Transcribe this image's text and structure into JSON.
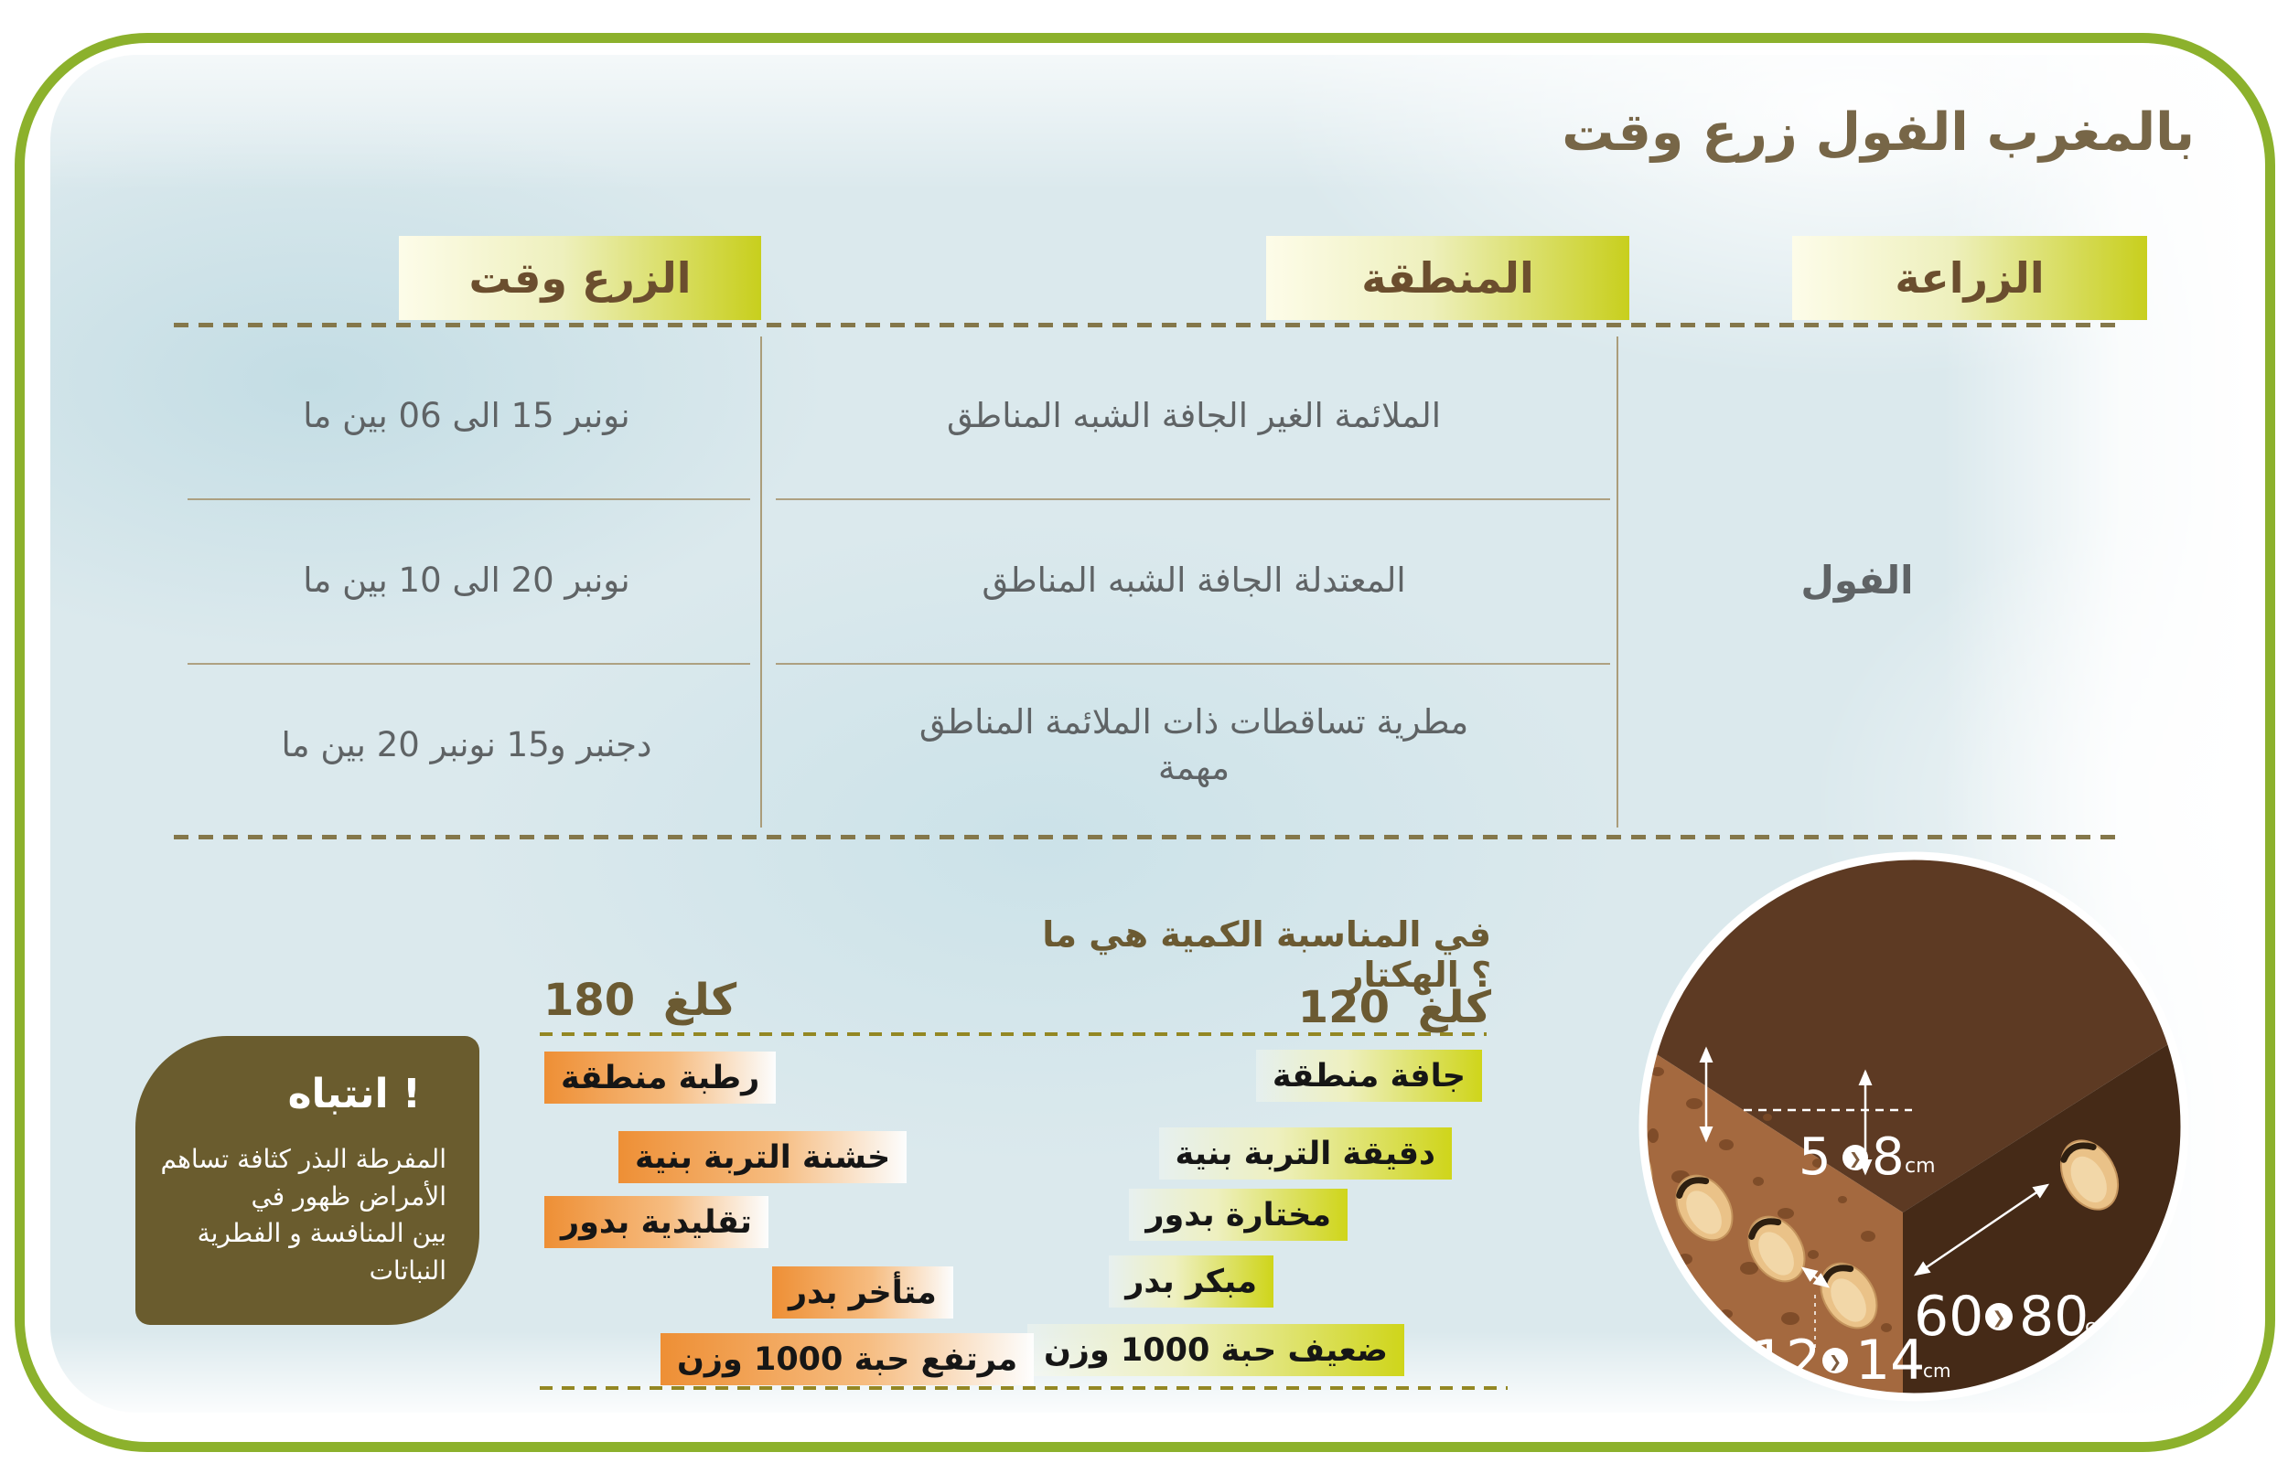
{
  "title": "وقت زرع الفول بالمغرب",
  "table": {
    "header_time": "وقت الزرع",
    "header_region": "المنطقة",
    "header_crop": "الزراعة",
    "crop": "الفول",
    "rows": [
      {
        "region": "المناطق الشبه الجافة الغير الملائمة",
        "time": "ما بين 06 الى 15 نونبر"
      },
      {
        "region": "المناطق الشبه الجافة المعتدلة",
        "time": "ما بين 10 الى 20 نونبر"
      },
      {
        "region": "المناطق الملائمة ذات تساقطات مطرية مهمة",
        "time": "ما بين 20 نونبر و15 دجنبر"
      }
    ]
  },
  "quantity": {
    "question": "ما هي الكمية المناسبة في الهكتار ؟",
    "dry": {
      "amount": "120 كلغ",
      "items": [
        "منطقة جافة",
        "بنية التربة دقيقة",
        "بدور مختارة",
        "بدر مبكر",
        "وزن 1000 حبة ضعيف"
      ]
    },
    "wet": {
      "amount": "180 كلغ",
      "items": [
        "منطقة رطبة",
        "بنية التربة خشنة",
        "بدور تقليدية",
        "بدر متأخر",
        "وزن 1000 حبة مرتفع"
      ]
    }
  },
  "attention": {
    "title": "انتباه !",
    "body": "تساهم كثافة البذر المفرطة في ظهور الأمراض الفطرية و المنافسة بين النباتات"
  },
  "diagram": {
    "chevron_icon": "❯",
    "measurements": [
      {
        "from": "5",
        "to": "8",
        "unit": "cm"
      },
      {
        "from": "60",
        "to": "80",
        "unit": "cm"
      },
      {
        "from": "12",
        "to": "14",
        "unit": "cm"
      }
    ]
  },
  "colors": {
    "frame_green": "#8cb12c",
    "header_yellow": "#c8cf1d",
    "label_yellow": "#cfd51a",
    "label_orange": "#ee8f35",
    "attention_olive": "#6a5c2e",
    "title_brown": "#776647",
    "text_gray": "#5f6365",
    "soil_top": "#5d3a23",
    "soil_left": "#a4693f",
    "soil_right": "#452a17"
  }
}
